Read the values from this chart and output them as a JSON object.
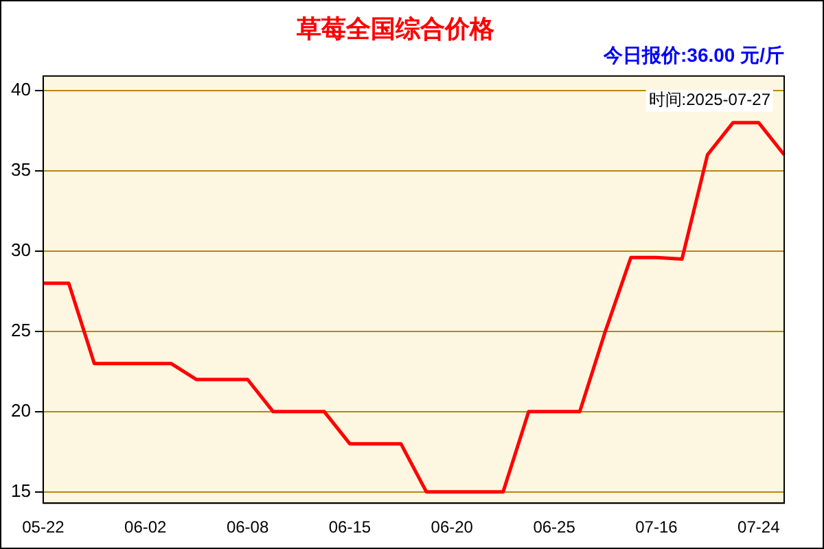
{
  "chart_data": {
    "type": "line",
    "title": "草莓全国综合价格",
    "subtitle": "今日报价:36.00 元/斤",
    "annotations": [
      "时间:2025-07-27"
    ],
    "categories": [
      "05-22",
      null,
      null,
      null,
      "06-02",
      null,
      null,
      null,
      "06-08",
      null,
      null,
      null,
      "06-15",
      null,
      null,
      null,
      "06-20",
      null,
      null,
      null,
      "06-25",
      null,
      null,
      null,
      "07-16",
      null,
      null,
      null,
      "07-24",
      null
    ],
    "series": [
      {
        "color": "#ff0000",
        "values": [
          28,
          28,
          23,
          23,
          23,
          23,
          22,
          22,
          22,
          20,
          20,
          20,
          18,
          18,
          18,
          15,
          15,
          15,
          15,
          20,
          20,
          20,
          25,
          29.6,
          29.6,
          29.5,
          36,
          38,
          38,
          36
        ]
      }
    ],
    "ylim": [
      14.3,
      40.9
    ],
    "yticks": [
      15,
      20,
      25,
      30,
      35,
      40
    ],
    "grid": "y",
    "legend": false,
    "marker": "none",
    "line_style": "solid"
  }
}
